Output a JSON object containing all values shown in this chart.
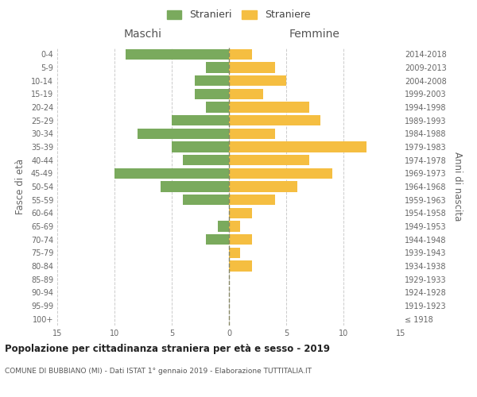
{
  "age_groups": [
    "100+",
    "95-99",
    "90-94",
    "85-89",
    "80-84",
    "75-79",
    "70-74",
    "65-69",
    "60-64",
    "55-59",
    "50-54",
    "45-49",
    "40-44",
    "35-39",
    "30-34",
    "25-29",
    "20-24",
    "15-19",
    "10-14",
    "5-9",
    "0-4"
  ],
  "birth_years": [
    "≤ 1918",
    "1919-1923",
    "1924-1928",
    "1929-1933",
    "1934-1938",
    "1939-1943",
    "1944-1948",
    "1949-1953",
    "1954-1958",
    "1959-1963",
    "1964-1968",
    "1969-1973",
    "1974-1978",
    "1979-1983",
    "1984-1988",
    "1989-1993",
    "1994-1998",
    "1999-2003",
    "2004-2008",
    "2009-2013",
    "2014-2018"
  ],
  "maschi": [
    0,
    0,
    0,
    0,
    0,
    0,
    2,
    1,
    0,
    4,
    6,
    10,
    4,
    5,
    8,
    5,
    2,
    3,
    3,
    2,
    9
  ],
  "femmine": [
    0,
    0,
    0,
    0,
    2,
    1,
    2,
    1,
    2,
    4,
    6,
    9,
    7,
    12,
    4,
    8,
    7,
    3,
    5,
    4,
    2
  ],
  "male_color": "#7aaa5d",
  "female_color": "#f5be41",
  "background_color": "#ffffff",
  "grid_color": "#cccccc",
  "title": "Popolazione per cittadinanza straniera per età e sesso - 2019",
  "subtitle": "COMUNE DI BUBBIANO (MI) - Dati ISTAT 1° gennaio 2019 - Elaborazione TUTTITALIA.IT",
  "xlabel_left": "Maschi",
  "xlabel_right": "Femmine",
  "ylabel_left": "Fasce di età",
  "ylabel_right": "Anni di nascita",
  "legend_male": "Stranieri",
  "legend_female": "Straniere",
  "xlim": 15,
  "bar_height": 0.8
}
